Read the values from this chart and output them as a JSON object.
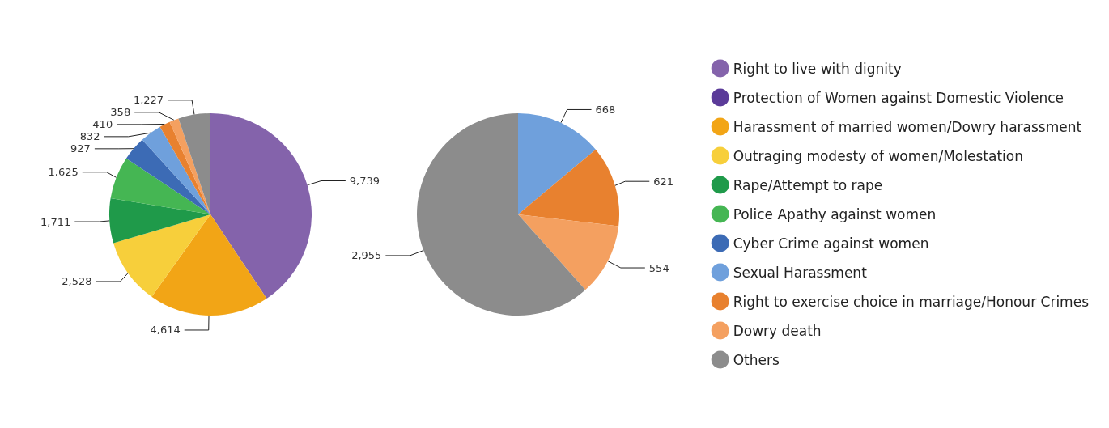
{
  "chart_data": {
    "type": "pie",
    "categories": [
      "Right to live with dignity",
      "Protection of Women against Domestic Violence",
      "Harassment of married women/Dowry harassment",
      "Outraging modesty of women/Molestation",
      "Rape/Attempt to rape",
      "Police Apathy against women",
      "Cyber Crime against women",
      "Sexual Harassment",
      "Right to exercise choice in marriage/Honour Crimes",
      "Dowry death",
      "Others"
    ],
    "colors": [
      "#8463ab",
      "#5b3b99",
      "#f2a516",
      "#f7cf3b",
      "#1f9a4a",
      "#45b653",
      "#3c6bb5",
      "#6fa0dc",
      "#e8812f",
      "#f4a060",
      "#8c8c8c"
    ],
    "series": [
      {
        "values": [
          9739,
          null,
          4614,
          2528,
          1711,
          1625,
          927,
          832,
          410,
          358,
          1227
        ],
        "value_labels": [
          "9,739",
          null,
          "4,614",
          "2,528",
          "1,711",
          "1,625",
          "927",
          "832",
          "410",
          "358",
          "1,227"
        ]
      },
      {
        "values": [
          null,
          null,
          null,
          null,
          null,
          null,
          null,
          668,
          621,
          554,
          2955
        ],
        "value_labels": [
          null,
          null,
          null,
          null,
          null,
          null,
          null,
          "668",
          "621",
          "554",
          "2,955"
        ]
      }
    ],
    "legend": "right"
  }
}
